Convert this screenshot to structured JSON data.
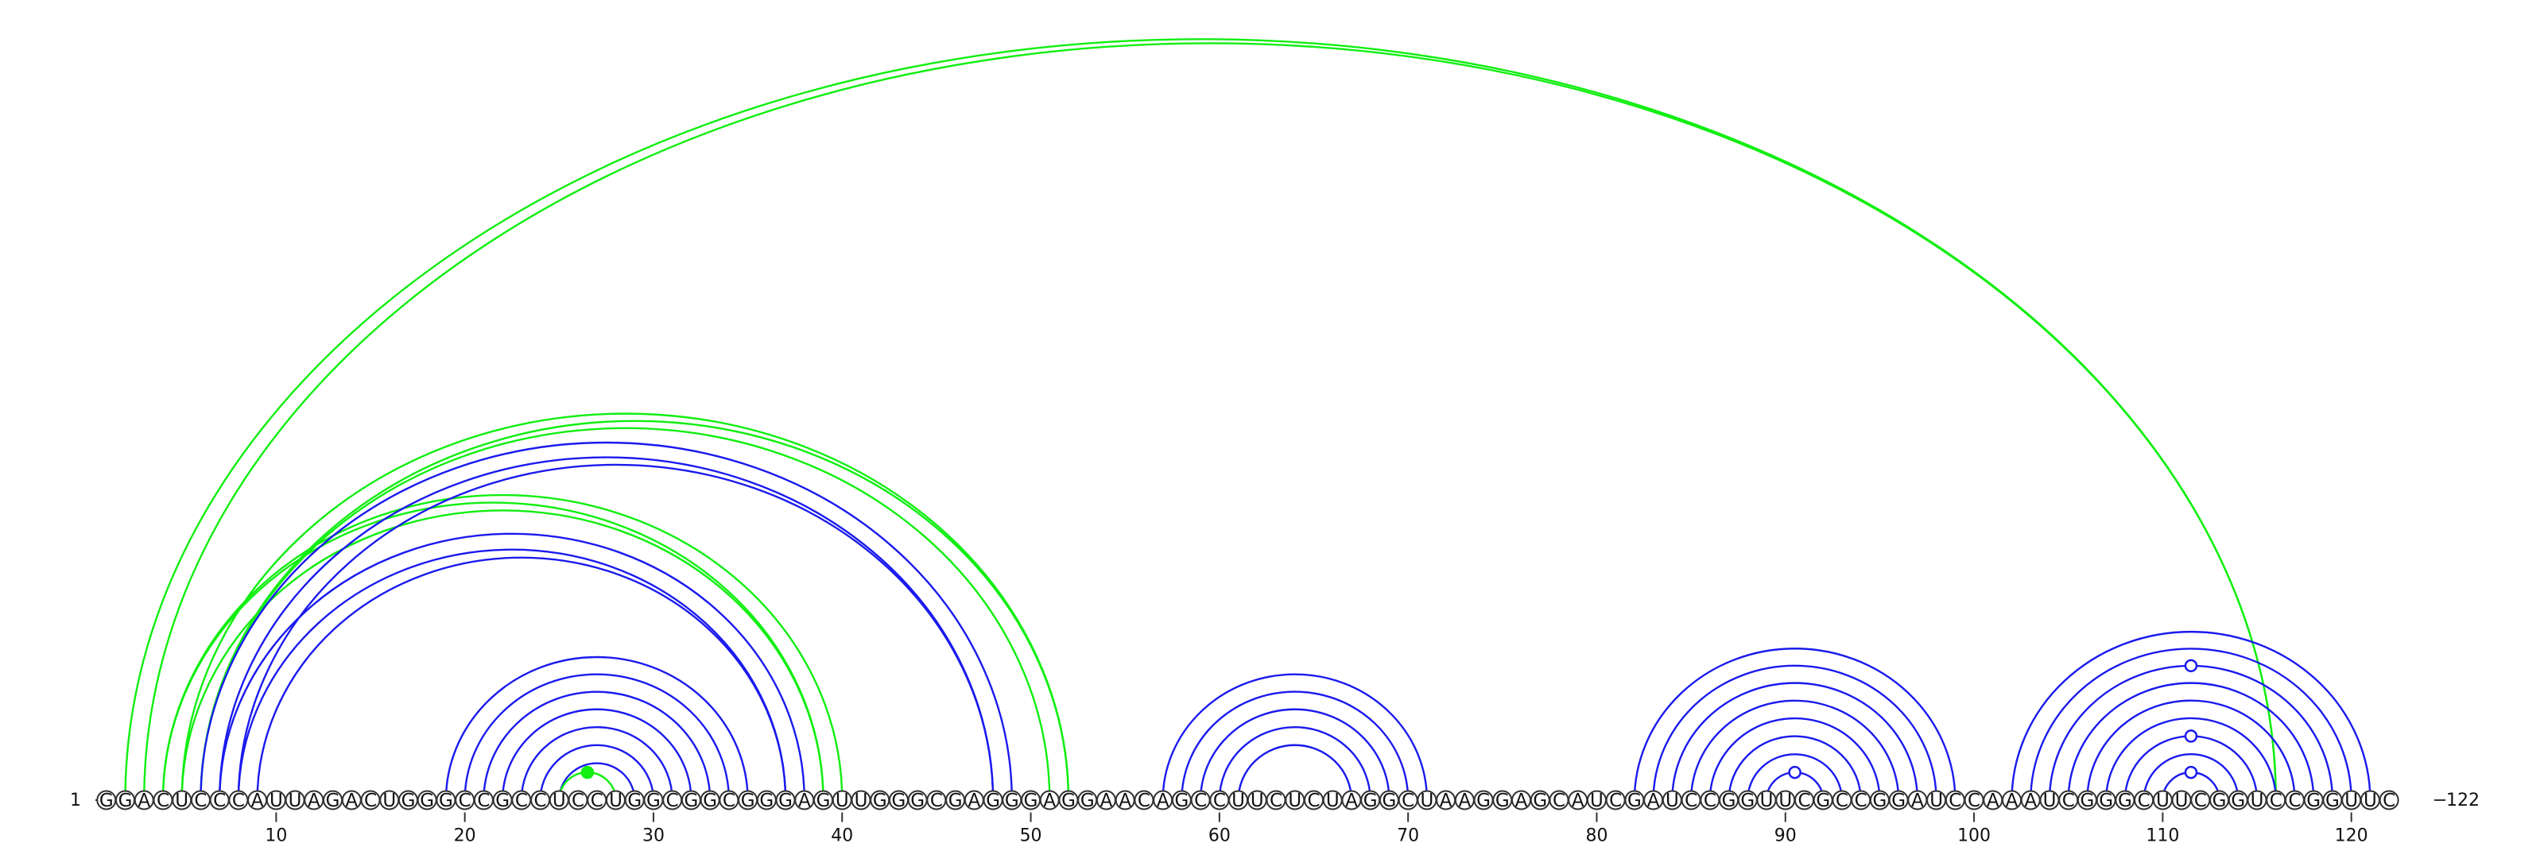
{
  "sequence": "GGACUCCCAUUAGACUGGGCCGCCUCCUGGCGGCGGGAGUUGGGCGAGGGAGGAACAGCCUUCUCUAGGCUAAGGAGCAUCGAUCCGGUUCGCCGGAUCCAAAUCGGGCUUCGGUCCGGUUC",
  "start_label": "1",
  "end_label": "122",
  "ticks": [
    10,
    20,
    30,
    40,
    50,
    60,
    70,
    80,
    90,
    100,
    110,
    120
  ],
  "colors": {
    "blue": "#1a1aee",
    "green": "#11ee11"
  },
  "helices": [
    {
      "color": "green",
      "pairs": [
        [
          2,
          116
        ],
        [
          3,
          116
        ]
      ]
    },
    {
      "color": "green",
      "pairs": [
        [
          4,
          39
        ],
        [
          5,
          39
        ]
      ]
    },
    {
      "color": "green",
      "pairs": [
        [
          4,
          40
        ]
      ]
    },
    {
      "color": "green",
      "pairs": [
        [
          5,
          52
        ],
        [
          6,
          52
        ]
      ]
    },
    {
      "color": "green",
      "pairs": [
        [
          6,
          51
        ]
      ]
    },
    {
      "color": "blue",
      "pairs": [
        [
          6,
          49
        ],
        [
          7,
          48
        ],
        [
          8,
          48
        ]
      ]
    },
    {
      "color": "blue",
      "pairs": [
        [
          7,
          38
        ],
        [
          8,
          37
        ],
        [
          9,
          37
        ]
      ]
    },
    {
      "color": "blue",
      "pairs": [
        [
          19,
          35
        ],
        [
          20,
          34
        ],
        [
          21,
          33
        ],
        [
          22,
          32
        ],
        [
          23,
          31
        ],
        [
          24,
          30
        ],
        [
          25,
          29
        ]
      ]
    },
    {
      "color": "green",
      "pairs": [
        [
          25,
          28
        ]
      ]
    },
    {
      "color": "blue",
      "pairs": [
        [
          57,
          71
        ],
        [
          58,
          70
        ],
        [
          59,
          69
        ],
        [
          60,
          68
        ],
        [
          61,
          67
        ]
      ]
    },
    {
      "color": "blue",
      "pairs": [
        [
          82,
          99
        ],
        [
          83,
          98
        ],
        [
          84,
          97
        ],
        [
          85,
          96
        ],
        [
          86,
          95
        ],
        [
          87,
          94
        ],
        [
          88,
          93
        ],
        [
          89,
          92
        ]
      ]
    },
    {
      "color": "blue",
      "pairs": [
        [
          102,
          121
        ],
        [
          103,
          120
        ],
        [
          104,
          119
        ],
        [
          105,
          118
        ],
        [
          106,
          117
        ],
        [
          107,
          116
        ],
        [
          108,
          115
        ],
        [
          109,
          114
        ],
        [
          110,
          113
        ]
      ]
    }
  ],
  "markers": [
    {
      "pos": 26.5,
      "color": "green",
      "style": "filled",
      "arc": [
        25,
        28
      ]
    },
    {
      "pos": 90.5,
      "color": "blue",
      "style": "open",
      "arc": [
        89,
        92
      ]
    },
    {
      "pos": 111.5,
      "color": "blue",
      "style": "open",
      "arc": [
        110,
        113
      ]
    },
    {
      "pos": 111.5,
      "color": "blue",
      "style": "open",
      "arc": [
        108,
        115
      ]
    },
    {
      "pos": 111.5,
      "color": "blue",
      "style": "open",
      "arc": [
        104,
        119
      ]
    }
  ]
}
